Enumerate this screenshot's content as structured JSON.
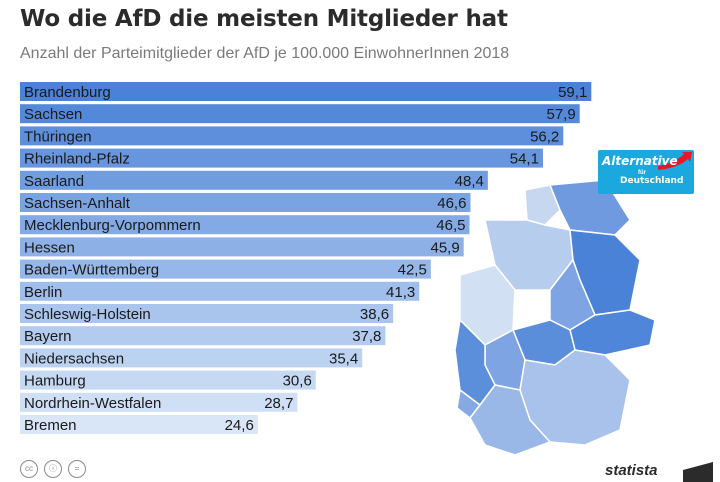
{
  "title": "Wo die AfD die meisten Mitglieder hat",
  "subtitle": "Anzahl der Parteimitglieder der AfD je 100.000 EinwohnerInnen 2018",
  "logo": {
    "line1": "Alternative",
    "line2": "für",
    "line3": "Deutschland"
  },
  "chart_data": {
    "type": "bar",
    "orientation": "horizontal",
    "title": "Wo die AfD die meisten Mitglieder hat",
    "subtitle": "Anzahl der Parteimitglieder der AfD je 100.000 EinwohnerInnen 2018",
    "categories": [
      "Brandenburg",
      "Sachsen",
      "Thüringen",
      "Rheinland-Pfalz",
      "Saarland",
      "Sachsen-Anhalt",
      "Mecklenburg-Vorpommern",
      "Hessen",
      "Baden-Württemberg",
      "Berlin",
      "Schleswig-Holstein",
      "Bayern",
      "Niedersachsen",
      "Hamburg",
      "Nordrhein-Westfalen",
      "Bremen"
    ],
    "values": [
      59.1,
      57.9,
      56.2,
      54.1,
      48.4,
      46.6,
      46.5,
      45.9,
      42.5,
      41.3,
      38.6,
      37.8,
      35.4,
      30.6,
      28.7,
      24.6
    ],
    "labels": [
      "59,1",
      "57,9",
      "56,2",
      "54,1",
      "48,4",
      "46,6",
      "46,5",
      "45,9",
      "42,5",
      "41,3",
      "38,6",
      "37,8",
      "35,4",
      "30,6",
      "28,7",
      "24,6"
    ],
    "xlim": [
      0,
      60
    ],
    "color_high": "#4a82d8",
    "color_low": "#d9e6f7"
  },
  "footer": {
    "brand": "statista",
    "license_icons": [
      "cc",
      "by",
      "nd"
    ],
    "license_text": [
      "cc",
      "ⓘ",
      "="
    ]
  }
}
